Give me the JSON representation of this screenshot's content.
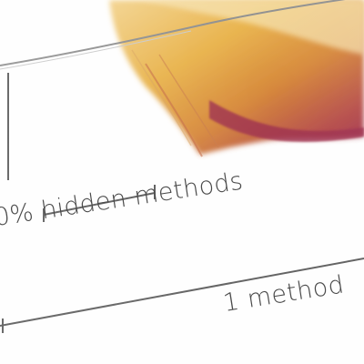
{
  "labels": {
    "hidden_methods": "0% hidden methods",
    "one_method": "1 method"
  },
  "colors": {
    "ink": "#4a4a4a",
    "swatch_yellow": "#e8b24a",
    "swatch_orange": "#d78a3c",
    "swatch_magenta": "#9d2d4e"
  }
}
